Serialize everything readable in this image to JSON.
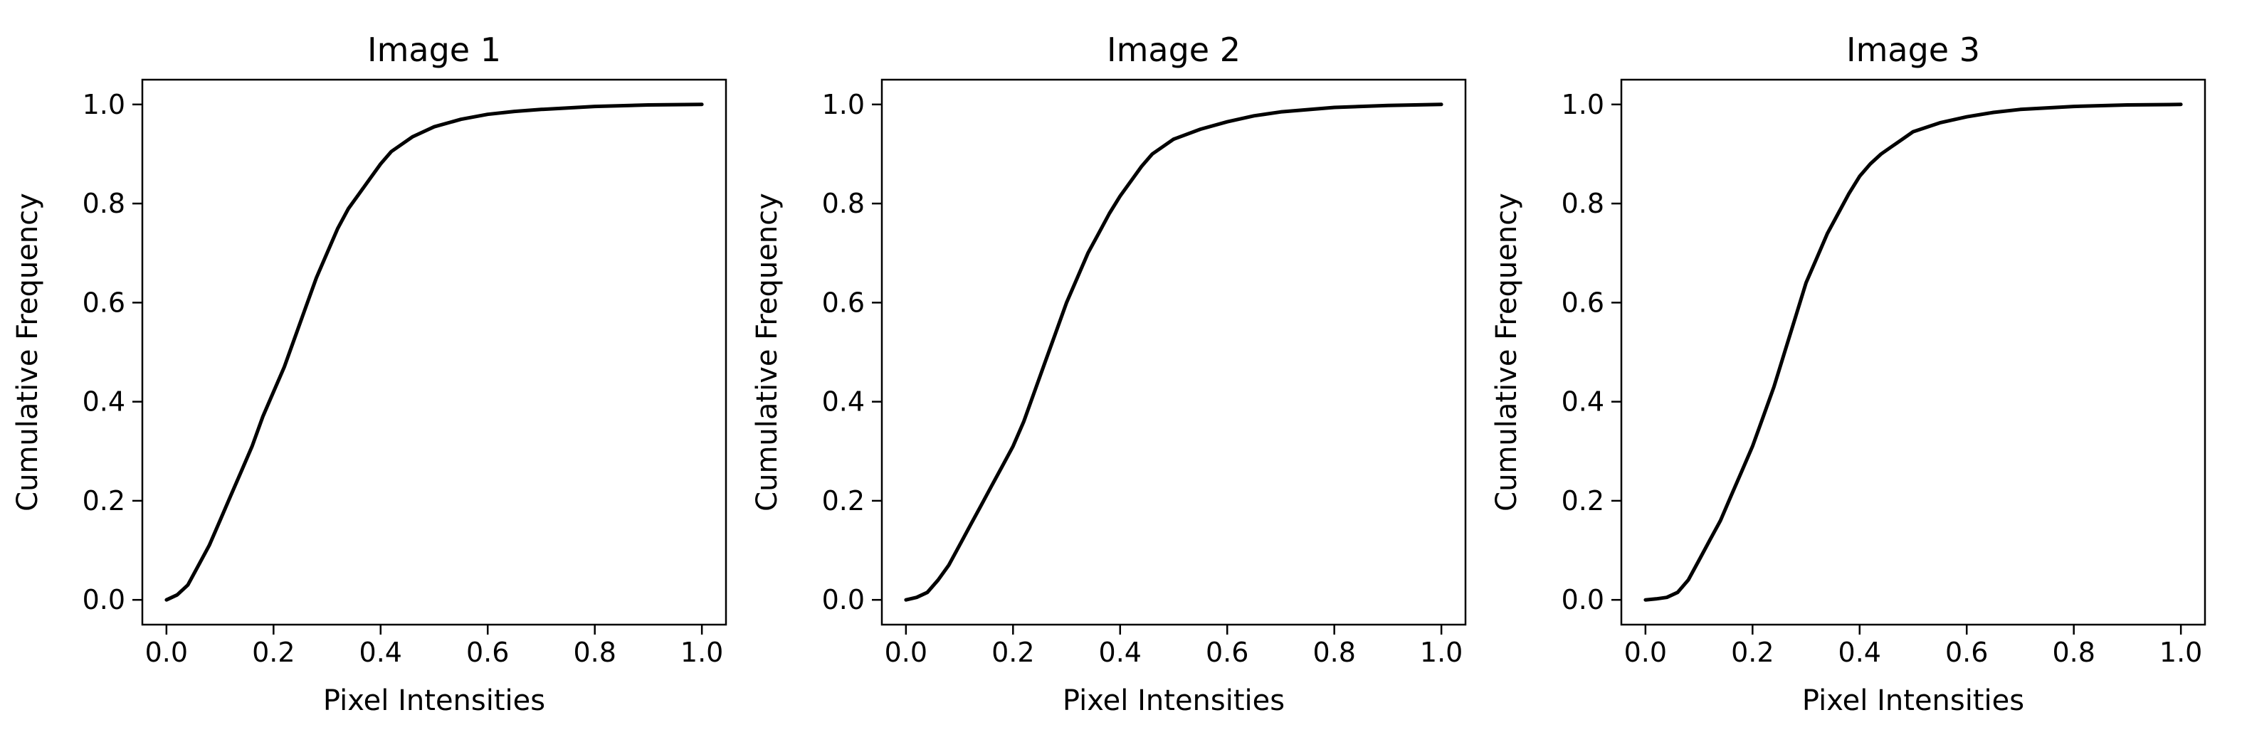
{
  "chart_data": [
    {
      "type": "line",
      "title": "Image 1",
      "xlabel": "Pixel Intensities",
      "ylabel": "Cumulative Frequency",
      "xlim": [
        -0.045,
        1.045
      ],
      "ylim": [
        -0.05,
        1.05
      ],
      "xticks": [
        "0.0",
        "0.2",
        "0.4",
        "0.6",
        "0.8",
        "1.0"
      ],
      "yticks": [
        "0.0",
        "0.2",
        "0.4",
        "0.6",
        "0.8",
        "1.0"
      ],
      "grid": false,
      "color": "#000000",
      "x": [
        0.0,
        0.02,
        0.04,
        0.06,
        0.08,
        0.1,
        0.12,
        0.14,
        0.16,
        0.18,
        0.2,
        0.22,
        0.24,
        0.26,
        0.28,
        0.3,
        0.32,
        0.34,
        0.36,
        0.38,
        0.4,
        0.42,
        0.44,
        0.46,
        0.48,
        0.5,
        0.55,
        0.6,
        0.65,
        0.7,
        0.8,
        0.9,
        1.0
      ],
      "y": [
        0.0,
        0.01,
        0.03,
        0.07,
        0.11,
        0.16,
        0.21,
        0.26,
        0.31,
        0.37,
        0.42,
        0.47,
        0.53,
        0.59,
        0.65,
        0.7,
        0.75,
        0.79,
        0.82,
        0.85,
        0.88,
        0.905,
        0.92,
        0.935,
        0.945,
        0.955,
        0.97,
        0.98,
        0.986,
        0.99,
        0.996,
        0.999,
        1.0
      ]
    },
    {
      "type": "line",
      "title": "Image 2",
      "xlabel": "Pixel Intensities",
      "ylabel": "Cumulative Frequency",
      "xlim": [
        -0.045,
        1.045
      ],
      "ylim": [
        -0.05,
        1.05
      ],
      "xticks": [
        "0.0",
        "0.2",
        "0.4",
        "0.6",
        "0.8",
        "1.0"
      ],
      "yticks": [
        "0.0",
        "0.2",
        "0.4",
        "0.6",
        "0.8",
        "1.0"
      ],
      "grid": false,
      "color": "#000000",
      "x": [
        0.0,
        0.02,
        0.04,
        0.06,
        0.08,
        0.1,
        0.12,
        0.14,
        0.16,
        0.18,
        0.2,
        0.22,
        0.24,
        0.26,
        0.28,
        0.3,
        0.32,
        0.34,
        0.36,
        0.38,
        0.4,
        0.42,
        0.44,
        0.46,
        0.48,
        0.5,
        0.55,
        0.6,
        0.65,
        0.7,
        0.8,
        0.9,
        1.0
      ],
      "y": [
        0.0,
        0.005,
        0.015,
        0.04,
        0.07,
        0.11,
        0.15,
        0.19,
        0.23,
        0.27,
        0.31,
        0.36,
        0.42,
        0.48,
        0.54,
        0.6,
        0.65,
        0.7,
        0.74,
        0.78,
        0.815,
        0.845,
        0.875,
        0.9,
        0.915,
        0.93,
        0.95,
        0.965,
        0.977,
        0.985,
        0.994,
        0.998,
        1.0
      ]
    },
    {
      "type": "line",
      "title": "Image 3",
      "xlabel": "Pixel Intensities",
      "ylabel": "Cumulative Frequency",
      "xlim": [
        -0.045,
        1.045
      ],
      "ylim": [
        -0.05,
        1.05
      ],
      "xticks": [
        "0.0",
        "0.2",
        "0.4",
        "0.6",
        "0.8",
        "1.0"
      ],
      "yticks": [
        "0.0",
        "0.2",
        "0.4",
        "0.6",
        "0.8",
        "1.0"
      ],
      "grid": false,
      "color": "#000000",
      "x": [
        0.0,
        0.02,
        0.04,
        0.06,
        0.08,
        0.1,
        0.12,
        0.14,
        0.16,
        0.18,
        0.2,
        0.22,
        0.24,
        0.26,
        0.28,
        0.3,
        0.32,
        0.34,
        0.36,
        0.38,
        0.4,
        0.42,
        0.44,
        0.46,
        0.48,
        0.5,
        0.55,
        0.6,
        0.65,
        0.7,
        0.8,
        0.9,
        1.0
      ],
      "y": [
        0.0,
        0.002,
        0.005,
        0.015,
        0.04,
        0.08,
        0.12,
        0.16,
        0.21,
        0.26,
        0.31,
        0.37,
        0.43,
        0.5,
        0.57,
        0.64,
        0.69,
        0.74,
        0.78,
        0.82,
        0.855,
        0.88,
        0.9,
        0.915,
        0.93,
        0.945,
        0.963,
        0.975,
        0.984,
        0.99,
        0.996,
        0.999,
        1.0
      ]
    }
  ]
}
